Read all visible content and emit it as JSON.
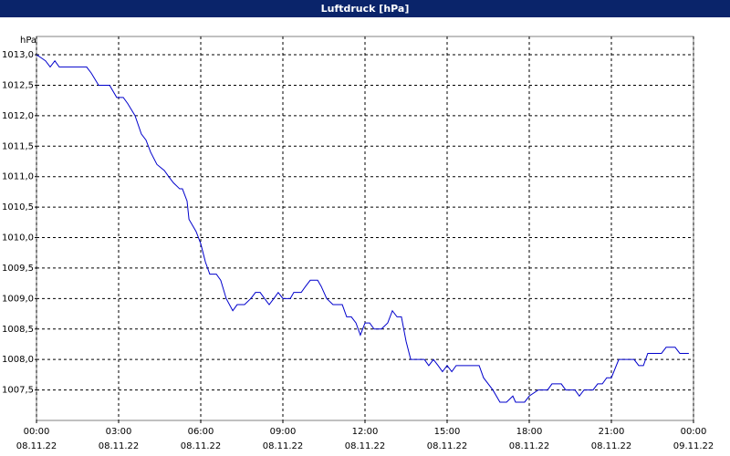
{
  "chart_data": {
    "type": "line",
    "title": "Luftdruck [hPa]",
    "ylabel": "hPa",
    "xlim": [
      0,
      24
    ],
    "ylim": [
      1007.0,
      1013.3
    ],
    "grid": true,
    "xticks": [
      {
        "value": 0,
        "label": "00:00\n08.11.22"
      },
      {
        "value": 3,
        "label": "03:00\n08.11.22"
      },
      {
        "value": 6,
        "label": "06:00\n08.11.22"
      },
      {
        "value": 9,
        "label": "09:00\n08.11.22"
      },
      {
        "value": 12,
        "label": "12:00\n08.11.22"
      },
      {
        "value": 15,
        "label": "15:00\n08.11.22"
      },
      {
        "value": 18,
        "label": "18:00\n08.11.22"
      },
      {
        "value": 21,
        "label": "21:00\n08.11.22"
      },
      {
        "value": 24,
        "label": "00:00\n09.11.22"
      }
    ],
    "yticks": [
      {
        "value": 1007.5,
        "label": "1007,5"
      },
      {
        "value": 1008.0,
        "label": "1008,0"
      },
      {
        "value": 1008.5,
        "label": "1008,5"
      },
      {
        "value": 1009.0,
        "label": "1009,0"
      },
      {
        "value": 1009.5,
        "label": "1009,5"
      },
      {
        "value": 1010.0,
        "label": "1010,0"
      },
      {
        "value": 1010.5,
        "label": "1010,5"
      },
      {
        "value": 1011.0,
        "label": "1011,0"
      },
      {
        "value": 1011.5,
        "label": "1011,5"
      },
      {
        "value": 1012.0,
        "label": "1012,0"
      },
      {
        "value": 1012.5,
        "label": "1012,5"
      },
      {
        "value": 1013.0,
        "label": "1013,0"
      }
    ],
    "x": [
      0,
      0.17,
      0.33,
      0.5,
      0.67,
      0.83,
      1.83,
      2,
      2.27,
      2.67,
      2.93,
      3.17,
      3.33,
      3.6,
      3.83,
      4,
      4.17,
      4.4,
      4.67,
      4.83,
      5,
      5.23,
      5.33,
      5.5,
      5.57,
      5.83,
      6,
      6.17,
      6.33,
      6.57,
      6.73,
      6.93,
      7.17,
      7.33,
      7.6,
      7.83,
      8,
      8.17,
      8.33,
      8.5,
      8.67,
      8.83,
      9,
      9.27,
      9.4,
      9.67,
      9.83,
      10,
      10.27,
      10.4,
      10.6,
      10.83,
      11.17,
      11.33,
      11.5,
      11.67,
      11.83,
      12,
      12.17,
      12.33,
      12.6,
      12.83,
      13,
      13.17,
      13.33,
      13.5,
      13.67,
      14.17,
      14.33,
      14.5,
      14.67,
      14.83,
      15,
      15.17,
      15.33,
      16.17,
      16.33,
      16.67,
      16.93,
      17.17,
      17.4,
      17.5,
      17.83,
      18,
      18.33,
      18.67,
      18.83,
      19.17,
      19.33,
      19.67,
      19.83,
      20,
      20.33,
      20.5,
      20.67,
      20.83,
      21,
      21.27,
      21.83,
      22,
      22.17,
      22.33,
      22.83,
      23,
      23.33,
      23.5,
      23.83
    ],
    "series": [
      {
        "color": "#0000cc",
        "values": [
          1013.0,
          1012.95,
          1012.9,
          1012.8,
          1012.9,
          1012.8,
          1012.8,
          1012.7,
          1012.5,
          1012.5,
          1012.3,
          1012.3,
          1012.2,
          1012.0,
          1011.7,
          1011.6,
          1011.4,
          1011.2,
          1011.1,
          1011.0,
          1010.9,
          1010.8,
          1010.8,
          1010.6,
          1010.3,
          1010.1,
          1009.9,
          1009.6,
          1009.4,
          1009.4,
          1009.3,
          1009.0,
          1008.8,
          1008.9,
          1008.9,
          1009.0,
          1009.1,
          1009.1,
          1009.0,
          1008.9,
          1009.0,
          1009.1,
          1009.0,
          1009.0,
          1009.1,
          1009.1,
          1009.2,
          1009.3,
          1009.3,
          1009.2,
          1009.0,
          1008.9,
          1008.9,
          1008.7,
          1008.7,
          1008.6,
          1008.4,
          1008.6,
          1008.6,
          1008.5,
          1008.5,
          1008.6,
          1008.8,
          1008.7,
          1008.7,
          1008.3,
          1008.0,
          1008.0,
          1007.9,
          1008.0,
          1007.9,
          1007.8,
          1007.9,
          1007.8,
          1007.9,
          1007.9,
          1007.7,
          1007.5,
          1007.3,
          1007.3,
          1007.4,
          1007.3,
          1007.3,
          1007.4,
          1007.5,
          1007.5,
          1007.6,
          1007.6,
          1007.5,
          1007.5,
          1007.4,
          1007.5,
          1007.5,
          1007.6,
          1007.6,
          1007.7,
          1007.7,
          1008.0,
          1008.0,
          1007.9,
          1007.9,
          1008.1,
          1008.1,
          1008.2,
          1008.2,
          1008.1,
          1008.1
        ]
      }
    ]
  }
}
